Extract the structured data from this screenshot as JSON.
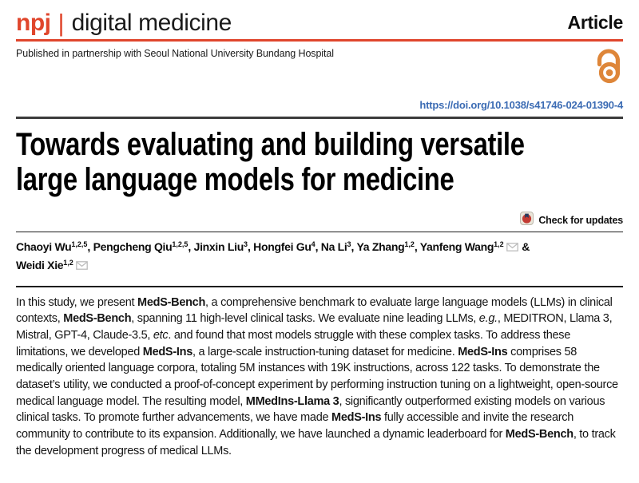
{
  "header": {
    "brand": {
      "prefix": "npj",
      "separator": "|",
      "name": "digital medicine"
    },
    "article_type": "Article",
    "partnership_text": "Published in partnership with Seoul National University Bundang Hospital",
    "icons": {
      "open_access": "open-access-lock-icon",
      "crossmark": "crossmark-icon",
      "email": "envelope-icon"
    },
    "colors": {
      "brand_red": "#e0462c",
      "open_access_orange": "#de8639",
      "doi_blue": "#3c6cb4"
    }
  },
  "doi": {
    "text": "https://doi.org/10.1038/s41746-024-01390-4"
  },
  "title": {
    "full": "Towards evaluating and building versatile large language models for medicine",
    "line1": "Towards evaluating and building versatile",
    "line2": "large language models for medicine"
  },
  "check_for_updates": {
    "label": "Check for updates"
  },
  "authors": {
    "joiner": ", ",
    "final_joiner": " &",
    "list": [
      {
        "name": "Chaoyi Wu",
        "sup": "1,2,5",
        "email": false
      },
      {
        "name": "Pengcheng Qiu",
        "sup": "1,2,5",
        "email": false
      },
      {
        "name": "Jinxin Liu",
        "sup": "3",
        "email": false
      },
      {
        "name": "Hongfei Gu",
        "sup": "4",
        "email": false
      },
      {
        "name": "Na Li",
        "sup": "3",
        "email": false
      },
      {
        "name": "Ya Zhang",
        "sup": "1,2",
        "email": false
      },
      {
        "name": "Yanfeng Wang",
        "sup": "1,2",
        "email": true
      },
      {
        "name": "Weidi Xie",
        "sup": "1,2",
        "email": true
      }
    ]
  },
  "abstract": {
    "segments": [
      {
        "t": "In this study, we present "
      },
      {
        "t": "MedS-Bench",
        "b": true
      },
      {
        "t": ", a comprehensive benchmark to evaluate large language models (LLMs) in clinical contexts, "
      },
      {
        "t": "MedS-Bench",
        "b": true
      },
      {
        "t": ", spanning 11 high-level clinical tasks. We evaluate nine leading LLMs, "
      },
      {
        "t": "e.g.",
        "i": true
      },
      {
        "t": ", MEDITRON, Llama 3, Mistral, GPT-4, Claude-3.5, "
      },
      {
        "t": "etc",
        "i": true
      },
      {
        "t": ". and found that most models struggle with these complex tasks. To address these limitations, we developed "
      },
      {
        "t": "MedS-Ins",
        "b": true
      },
      {
        "t": ", a large-scale instruction-tuning dataset for medicine. "
      },
      {
        "t": "MedS-Ins",
        "b": true
      },
      {
        "t": " comprises 58 medically oriented language corpora, totaling 5M instances with 19K instructions, across 122 tasks. To demonstrate the dataset’s utility, we conducted a proof-of-concept experiment by performing instruction tuning on a lightweight, open-source medical language model. The resulting model, "
      },
      {
        "t": "MMedIns-Llama 3",
        "b": true
      },
      {
        "t": ", significantly outperformed existing models on various clinical tasks. To promote further advancements, we have made "
      },
      {
        "t": "MedS-Ins",
        "b": true
      },
      {
        "t": " fully accessible and invite the research community to contribute to its expansion. Additionally, we have launched a dynamic leaderboard for "
      },
      {
        "t": "MedS-Bench",
        "b": true
      },
      {
        "t": ", to track the development progress of medical LLMs."
      }
    ]
  }
}
